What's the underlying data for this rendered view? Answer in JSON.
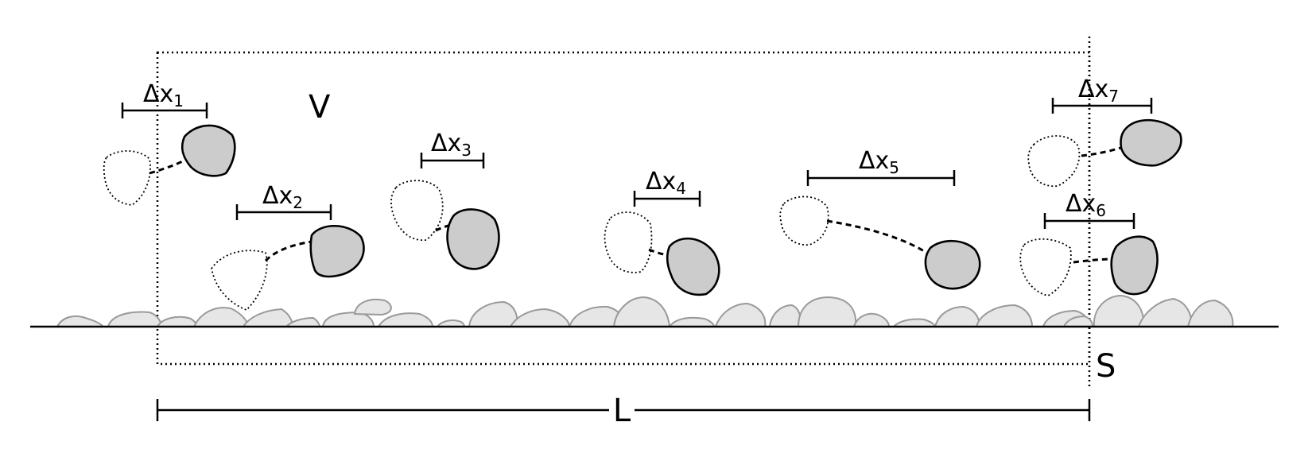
{
  "labels": {
    "volume": "V",
    "surface": "S",
    "length": "L"
  },
  "displacements": [
    {
      "symbol": "Δx",
      "index": "1"
    },
    {
      "symbol": "Δx",
      "index": "2"
    },
    {
      "symbol": "Δx",
      "index": "3"
    },
    {
      "symbol": "Δx",
      "index": "4"
    },
    {
      "symbol": "Δx",
      "index": "5"
    },
    {
      "symbol": "Δx",
      "index": "6"
    },
    {
      "symbol": "Δx",
      "index": "7"
    }
  ],
  "colors": {
    "particle_fill": "#cccccc",
    "bed_fill": "#e6e6e6",
    "bed_stroke": "#9a9a9a",
    "line": "#000000"
  }
}
